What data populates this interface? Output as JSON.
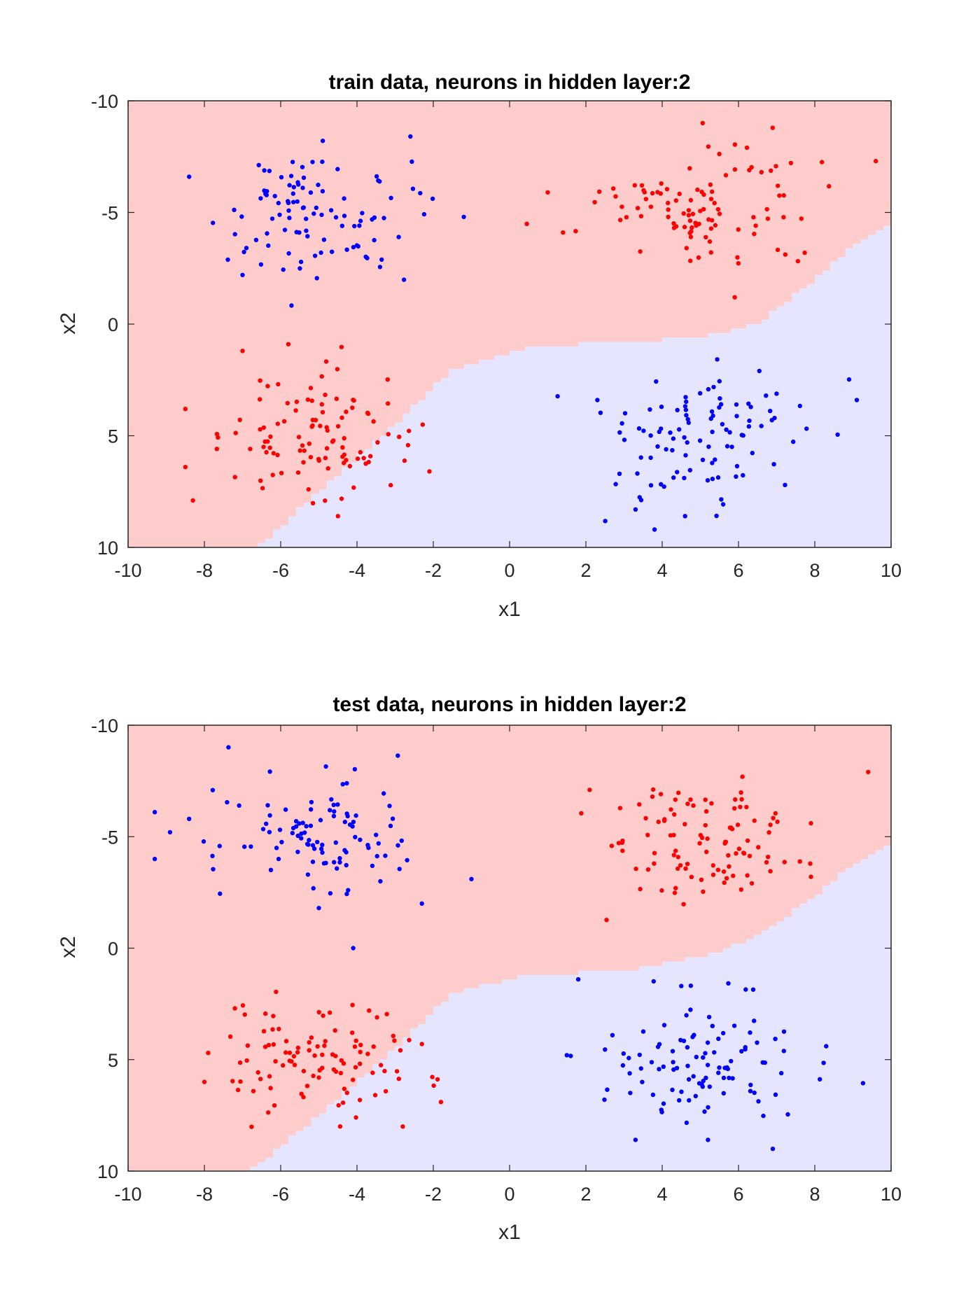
{
  "colors": {
    "region_red": "#ffcccc",
    "region_blue": "#e5e5ff",
    "point_red": "#ff0000",
    "point_blue": "#0000ff",
    "axis": "#262626"
  },
  "chart_data": [
    {
      "type": "scatter",
      "title": "train data, neurons in hidden layer:2",
      "xlabel": "x1",
      "ylabel": "x2",
      "xlim": [
        -10,
        10
      ],
      "ylim": [
        -10,
        10
      ],
      "y_direction": "reversed",
      "xticks": [
        -10,
        -8,
        -6,
        -4,
        -2,
        0,
        2,
        4,
        6,
        8,
        10
      ],
      "yticks": [
        -10,
        -5,
        0,
        5,
        10
      ],
      "xtick_labels": [
        "-10",
        "-8",
        "-6",
        "-4",
        "-2",
        "0",
        "2",
        "4",
        "6",
        "8",
        "10"
      ],
      "ytick_labels": [
        "-10",
        "-5",
        "0",
        "5",
        "10"
      ],
      "decision_boundary": {
        "description": "x2 value above which (larger x2) the region is class blue, as function of x1",
        "x1": [
          -10,
          -6.6,
          -5.0,
          -3.0,
          -1.5,
          0.5,
          3.0,
          5.0,
          6.5,
          8.0,
          9.0,
          10
        ],
        "x2": [
          10.0,
          10.0,
          7.5,
          4.5,
          2.0,
          1.0,
          0.8,
          0.6,
          0.0,
          -2.0,
          -3.5,
          -4.6
        ]
      },
      "series": [
        {
          "name": "class red",
          "color": "#ff0000",
          "clusters": [
            {
              "center": [
                5.0,
                -5.0
              ],
              "spread": [
                1.3,
                1.4
              ],
              "n": 100,
              "outliers": [
                [
                  1.0,
                  -5.9
                ],
                [
                  1.4,
                  -4.1
                ],
                [
                  9.6,
                  -7.3
                ],
                [
                  5.9,
                  -1.2
                ]
              ]
            },
            {
              "center": [
                -5.0,
                5.0
              ],
              "spread": [
                1.3,
                1.3
              ],
              "n": 100,
              "outliers": [
                [
                  -8.5,
                  3.8
                ],
                [
                  -8.5,
                  6.4
                ],
                [
                  -8.3,
                  7.9
                ],
                [
                  -7.0,
                  1.2
                ],
                [
                  -5.8,
                  0.9
                ],
                [
                  -2.1,
                  6.6
                ],
                [
                  -4.5,
                  8.6
                ]
              ]
            }
          ]
        },
        {
          "name": "class blue",
          "color": "#0000ff",
          "clusters": [
            {
              "center": [
                -5.0,
                -5.0
              ],
              "spread": [
                1.3,
                1.4
              ],
              "n": 100,
              "outliers": [
                [
                  -8.4,
                  -6.6
                ],
                [
                  -2.6,
                  -8.4
                ],
                [
                  -1.2,
                  -4.8
                ],
                [
                  -7.0,
                  -2.2
                ]
              ]
            },
            {
              "center": [
                5.0,
                5.0
              ],
              "spread": [
                1.3,
                1.4
              ],
              "n": 100,
              "outliers": [
                [
                  9.1,
                  3.4
                ],
                [
                  3.3,
                  8.3
                ],
                [
                  3.8,
                  9.2
                ],
                [
                  4.6,
                  8.6
                ],
                [
                  2.3,
                  3.4
                ]
              ]
            }
          ]
        }
      ]
    },
    {
      "type": "scatter",
      "title": "test data, neurons in hidden layer:2",
      "xlabel": "x1",
      "ylabel": "x2",
      "xlim": [
        -10,
        10
      ],
      "ylim": [
        -10,
        10
      ],
      "y_direction": "reversed",
      "xticks": [
        -10,
        -8,
        -6,
        -4,
        -2,
        0,
        2,
        4,
        6,
        8,
        10
      ],
      "yticks": [
        -10,
        -5,
        0,
        5,
        10
      ],
      "xtick_labels": [
        "-10",
        "-8",
        "-6",
        "-4",
        "-2",
        "0",
        "2",
        "4",
        "6",
        "8",
        "10"
      ],
      "ytick_labels": [
        "-10",
        "-5",
        "0",
        "5",
        "10"
      ],
      "decision_boundary": {
        "description": "x2 value above which (larger x2) the region is class blue, as function of x1",
        "x1": [
          -10,
          -6.8,
          -5.2,
          -3.0,
          -1.5,
          0.5,
          3.0,
          5.0,
          6.5,
          8.0,
          9.0,
          10
        ],
        "x2": [
          10.0,
          10.0,
          7.8,
          4.5,
          2.0,
          1.2,
          1.0,
          0.4,
          -0.5,
          -2.3,
          -3.8,
          -4.8
        ]
      },
      "series": [
        {
          "name": "class red",
          "color": "#ff0000",
          "clusters": [
            {
              "center": [
                5.2,
                -5.0
              ],
              "spread": [
                1.2,
                1.3
              ],
              "n": 100,
              "outliers": [
                [
                  2.1,
                  -7.1
                ],
                [
                  9.4,
                  -7.9
                ],
                [
                  7.9,
                  -3.2
                ],
                [
                  7.9,
                  -5.6
                ]
              ]
            },
            {
              "center": [
                -5.0,
                5.0
              ],
              "spread": [
                1.3,
                1.3
              ],
              "n": 100,
              "outliers": [
                [
                  -7.9,
                  4.7
                ],
                [
                  -7.2,
                  2.7
                ],
                [
                  -2.8,
                  8.0
                ],
                [
                  -1.8,
                  6.9
                ],
                [
                  -2.3,
                  4.3
                ]
              ]
            }
          ]
        },
        {
          "name": "class blue",
          "color": "#0000ff",
          "clusters": [
            {
              "center": [
                -5.0,
                -5.0
              ],
              "spread": [
                1.3,
                1.4
              ],
              "n": 100,
              "outliers": [
                [
                  -9.3,
                  -6.1
                ],
                [
                  -9.3,
                  -4.0
                ],
                [
                  -8.4,
                  -5.8
                ],
                [
                  -8.9,
                  -5.2
                ],
                [
                  -1.0,
                  -3.1
                ],
                [
                  -4.1,
                  0.0
                ],
                [
                  -5.0,
                  -1.8
                ],
                [
                  -2.3,
                  -2.0
                ]
              ]
            },
            {
              "center": [
                5.0,
                5.0
              ],
              "spread": [
                1.3,
                1.3
              ],
              "n": 100,
              "outliers": [
                [
                  1.8,
                  1.4
                ],
                [
                  1.5,
                  4.8
                ],
                [
                  8.3,
                  4.4
                ],
                [
                  3.3,
                  8.6
                ],
                [
                  5.2,
                  8.6
                ],
                [
                  6.9,
                  9.0
                ],
                [
                  4.5,
                  1.7
                ]
              ]
            }
          ]
        }
      ]
    }
  ]
}
